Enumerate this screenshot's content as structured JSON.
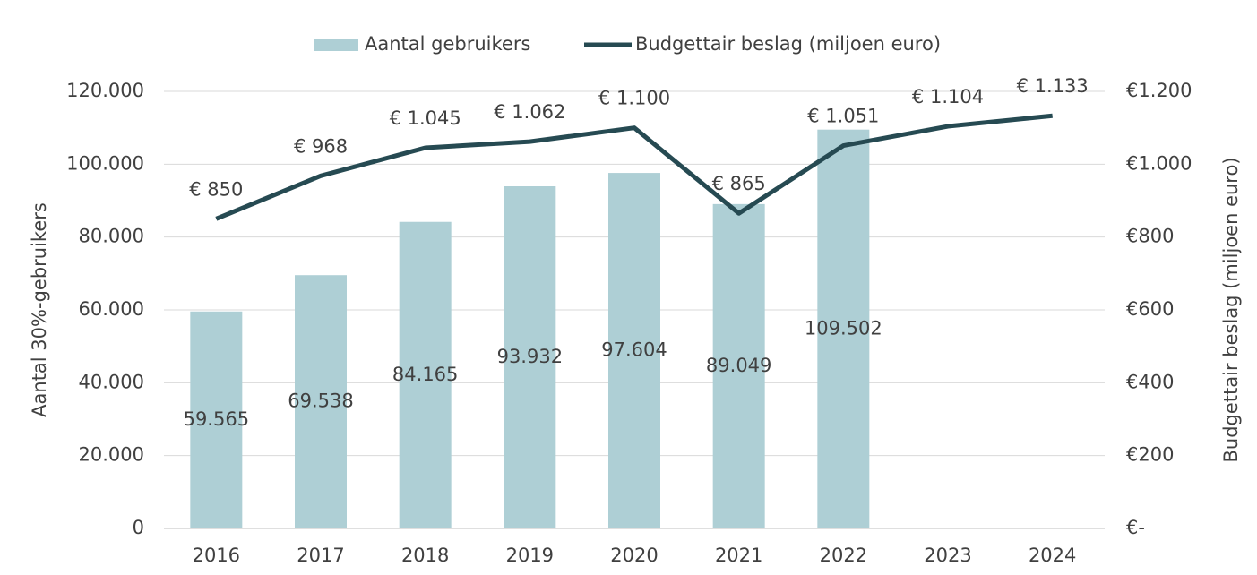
{
  "chart_data": {
    "type": "bar",
    "categories": [
      "2016",
      "2017",
      "2018",
      "2019",
      "2020",
      "2021",
      "2022",
      "2023",
      "2024"
    ],
    "series": [
      {
        "name": "Aantal gebruikers",
        "type": "bar",
        "color": "#aecfd5",
        "values": [
          59565,
          69538,
          84165,
          93932,
          97604,
          89049,
          109502,
          null,
          null
        ],
        "value_labels": [
          "59.565",
          "69.538",
          "84.165",
          "93.932",
          "97.604",
          "89.049",
          "109.502",
          null,
          null
        ]
      },
      {
        "name": "Budgettair beslag (miljoen euro)",
        "type": "line",
        "axis": "y2",
        "color": "#264a52",
        "values": [
          850,
          968,
          1045,
          1062,
          1100,
          865,
          1051,
          1104,
          1133
        ],
        "value_labels": [
          "€ 850",
          "€ 968",
          "€ 1.045",
          "€ 1.062",
          "€ 1.100",
          "€ 865",
          "€ 1.051",
          "€ 1.104",
          "€ 1.133"
        ]
      }
    ],
    "ylabel": "Aantal 30%-gebruikers",
    "y2label": "Budgettair beslag (miljoen euro)",
    "ylim": [
      0,
      120000
    ],
    "yticks": [
      0,
      {
        "value": 20000,
        "label": "20.000"
      },
      {
        "value": 40000,
        "label": "40.000"
      },
      {
        "value": 60000,
        "label": "60.000"
      },
      {
        "value": 80000,
        "label": "80.000"
      },
      {
        "value": 100000,
        "label": "100.000"
      },
      {
        "value": 120000,
        "label": "120.000"
      }
    ],
    "y2lim": [
      0,
      1200
    ],
    "y2ticks": [
      {
        "value": 0,
        "label": "€-"
      },
      {
        "value": 200,
        "label": "€200"
      },
      {
        "value": 400,
        "label": "€400"
      },
      {
        "value": 600,
        "label": "€600"
      },
      {
        "value": 800,
        "label": "€800"
      },
      {
        "value": 1000,
        "label": "€1.000"
      },
      {
        "value": 1200,
        "label": "€1.200"
      }
    ],
    "grid": true,
    "legend": "top"
  }
}
